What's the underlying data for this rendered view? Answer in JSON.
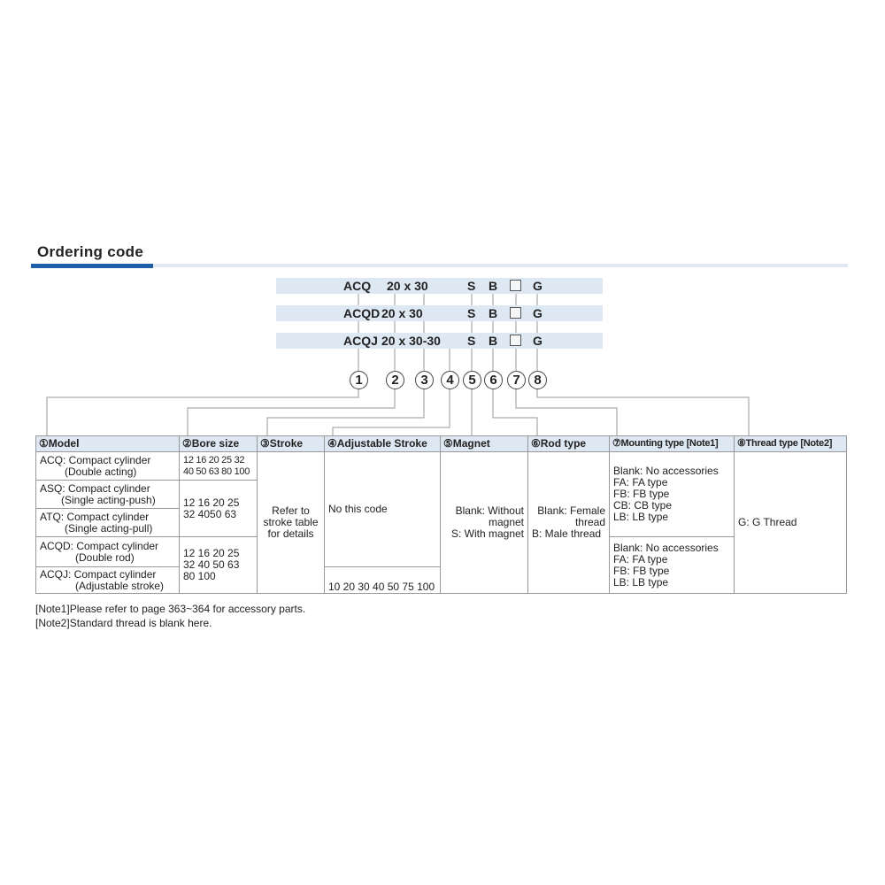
{
  "title": "Ordering code",
  "codes": [
    {
      "model": "ACQ",
      "bore_stroke": "20 x 30",
      "magnet": "S",
      "rod": "B",
      "thread": "G"
    },
    {
      "model": "ACQD",
      "bore_stroke": "20 x 30",
      "magnet": "S",
      "rod": "B",
      "thread": "G"
    },
    {
      "model": "ACQJ",
      "bore_stroke": "20 x 30-30",
      "magnet": "S",
      "rod": "B",
      "thread": "G"
    }
  ],
  "markers": [
    "1",
    "2",
    "3",
    "4",
    "5",
    "6",
    "7",
    "8"
  ],
  "table": {
    "headers": [
      "①Model",
      "②Bore size",
      "③Stroke",
      "④Adjustable Stroke",
      "⑤Magnet",
      "⑥Rod type",
      "⑦Mounting type [Note1]",
      "⑧Thread type [Note2]"
    ],
    "models": [
      {
        "name": "ACQ: Compact cylinder",
        "desc": "(Double acting)"
      },
      {
        "name": "ASQ: Compact cylinder",
        "desc": "(Single acting-push)"
      },
      {
        "name": "ATQ: Compact cylinder",
        "desc": "(Single acting-pull)"
      },
      {
        "name": "ACQD: Compact cylinder",
        "desc": "(Double rod)"
      },
      {
        "name": "ACQJ: Compact cylinder",
        "desc": "(Adjustable stroke)"
      }
    ],
    "bore": [
      "12 16 20 25 32 40 50 63 80 100",
      "12 16 20 25 32 4050 63",
      "12 16 20 25 32 40 50 63 80 100"
    ],
    "stroke": "Refer to stroke table for details",
    "adjustable": [
      "No this code",
      "10 20 30 40 50 75 100"
    ],
    "magnet": [
      "Blank: Without magnet",
      "S: With magnet"
    ],
    "rod": [
      "Blank: Female thread",
      "B: Male thread"
    ],
    "mounting_a": [
      "Blank: No accessories",
      "FA: FA type",
      "FB: FB type",
      "CB: CB type",
      "LB: LB type"
    ],
    "mounting_b": [
      "Blank: No accessories",
      "FA: FA type",
      "FB: FB type",
      "LB: LB type"
    ],
    "thread": "G: G Thread"
  },
  "notes": [
    "[Note1]Please refer to page 363~364 for accessory parts.",
    "[Note2]Standard thread is blank here."
  ],
  "colors": {
    "accent": "#1a5fa8",
    "band": "#dde8f2"
  }
}
